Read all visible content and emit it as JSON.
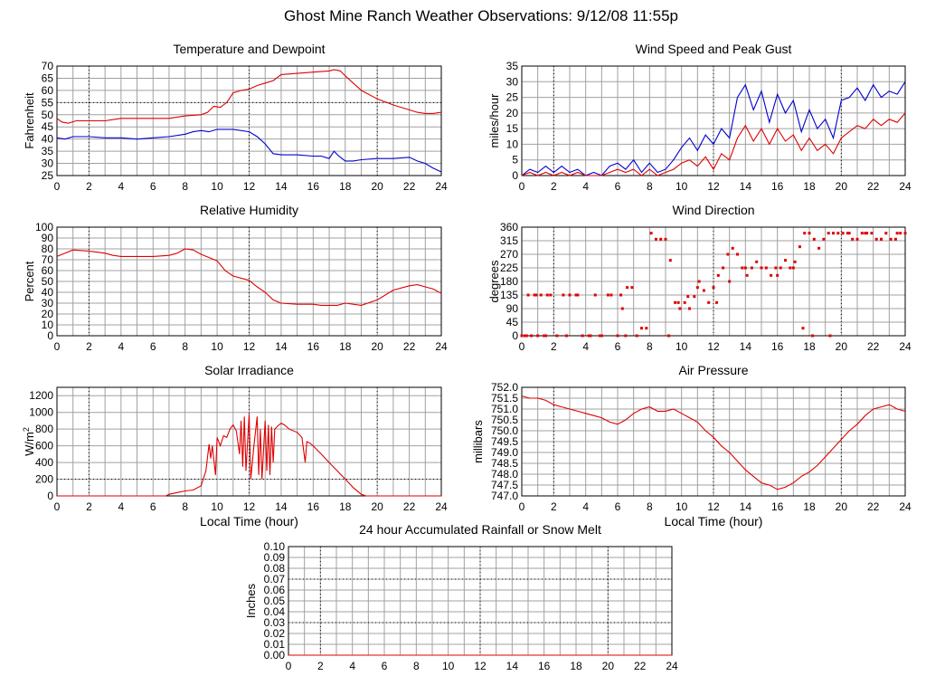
{
  "page_title": "Ghost Mine Ranch Weather Observations: 9/12/08 11:55p",
  "colors": {
    "series_red": "#e00000",
    "series_blue": "#0000d0",
    "grid": "#a0a0a0",
    "dotted": "#000000"
  },
  "chart_data": [
    {
      "id": "temp",
      "type": "line",
      "title": "Temperature and Dewpoint",
      "ylabel": "Fahrenheit",
      "xlabel": "",
      "xlim": [
        0,
        24
      ],
      "ylim": [
        25,
        70
      ],
      "xticks": [
        0,
        2,
        4,
        6,
        8,
        10,
        12,
        14,
        16,
        18,
        20,
        22,
        24
      ],
      "yticks": [
        25,
        30,
        35,
        40,
        45,
        50,
        55,
        60,
        65,
        70
      ],
      "dotted_y": [
        55
      ],
      "series": [
        {
          "color": "red",
          "x": [
            0,
            0.3,
            0.7,
            1.2,
            2,
            3,
            4,
            5,
            6,
            7,
            8,
            9,
            9.4,
            9.8,
            10.2,
            10.6,
            11,
            11.5,
            12,
            12.5,
            13,
            13.5,
            14,
            15,
            16,
            17,
            17.3,
            17.7,
            18,
            18.5,
            19,
            20,
            21,
            22,
            22.5,
            23,
            23.5,
            24
          ],
          "values": [
            48.5,
            47,
            46.5,
            47.5,
            47.5,
            47.5,
            48.5,
            48.5,
            48.5,
            48.5,
            49.5,
            50,
            51,
            53.5,
            53,
            55,
            59,
            60,
            60.5,
            62,
            63,
            64,
            66.5,
            67,
            67.5,
            68,
            68.5,
            68,
            66,
            63,
            60,
            56.5,
            54,
            52,
            51,
            50.5,
            50.5,
            51
          ]
        },
        {
          "color": "blue",
          "x": [
            0,
            0.5,
            1,
            2,
            3,
            4,
            5,
            6,
            7,
            8,
            8.5,
            9,
            9.5,
            10,
            10.5,
            11,
            12,
            12.5,
            13,
            13.5,
            14,
            15,
            16,
            16.5,
            17,
            17.3,
            17.6,
            18,
            18.5,
            19,
            20,
            21,
            22,
            22.5,
            23,
            23.5,
            24
          ],
          "values": [
            40.5,
            40,
            41,
            41,
            40.5,
            40.5,
            40,
            40.5,
            41,
            42,
            43,
            43.5,
            43,
            44,
            44,
            44,
            43,
            41,
            38,
            34,
            33.5,
            33.5,
            33,
            33,
            32,
            35,
            33,
            31,
            31,
            31.5,
            32,
            32,
            32.5,
            31,
            30,
            28,
            26.5
          ]
        }
      ]
    },
    {
      "id": "wind",
      "type": "line",
      "title": "Wind Speed and Peak Gust",
      "ylabel": "miles/hour",
      "xlabel": "",
      "xlim": [
        0,
        24
      ],
      "ylim": [
        0,
        35
      ],
      "xticks": [
        0,
        2,
        4,
        6,
        8,
        10,
        12,
        14,
        16,
        18,
        20,
        22,
        24
      ],
      "yticks": [
        0,
        5,
        10,
        15,
        20,
        25,
        30,
        35
      ],
      "dotted_y": [],
      "series": [
        {
          "color": "blue",
          "x": [
            0,
            0.5,
            1,
            1.5,
            2,
            2.5,
            3,
            3.5,
            4,
            4.5,
            5,
            5.5,
            6,
            6.5,
            7,
            7.5,
            8,
            8.5,
            9,
            9.5,
            10,
            10.5,
            11,
            11.5,
            12,
            12.5,
            13,
            13.5,
            14,
            14.5,
            15,
            15.5,
            16,
            16.5,
            17,
            17.5,
            18,
            18.5,
            19,
            19.5,
            20,
            20.5,
            21,
            21.5,
            22,
            22.5,
            23,
            23.5,
            24
          ],
          "values": [
            0,
            2,
            1,
            3,
            1,
            3,
            1,
            2,
            0,
            1,
            0,
            3,
            4,
            2,
            5,
            1,
            4,
            1,
            2,
            5,
            9,
            12,
            8,
            13,
            10,
            15,
            12,
            25,
            29,
            21,
            27,
            17,
            26,
            20,
            24,
            14,
            21,
            15,
            18,
            12,
            24,
            25,
            28,
            24,
            29,
            25,
            27,
            26,
            30
          ]
        },
        {
          "color": "red",
          "x": [
            0,
            0.5,
            1,
            1.5,
            2,
            2.5,
            3,
            3.5,
            4,
            4.5,
            5,
            5.5,
            6,
            6.5,
            7,
            7.5,
            8,
            8.5,
            9,
            9.5,
            10,
            10.5,
            11,
            11.5,
            12,
            12.5,
            13,
            13.5,
            14,
            14.5,
            15,
            15.5,
            16,
            16.5,
            17,
            17.5,
            18,
            18.5,
            19,
            19.5,
            20,
            20.5,
            21,
            21.5,
            22,
            22.5,
            23,
            23.5,
            24
          ],
          "values": [
            0,
            1,
            0,
            1,
            0,
            1,
            0,
            1,
            0,
            0,
            0,
            1,
            2,
            1,
            2,
            0,
            2,
            0,
            1,
            2,
            4,
            5,
            3,
            6,
            2,
            7,
            5,
            12,
            16,
            11,
            15,
            10,
            15,
            11,
            13,
            8,
            12,
            8,
            10,
            7,
            12,
            14,
            16,
            15,
            18,
            16,
            18,
            17,
            20
          ]
        }
      ]
    },
    {
      "id": "rh",
      "type": "line",
      "title": "Relative Humidity",
      "ylabel": "Percent",
      "xlabel": "",
      "xlim": [
        0,
        24
      ],
      "ylim": [
        0,
        100
      ],
      "xticks": [
        0,
        2,
        4,
        6,
        8,
        10,
        12,
        14,
        16,
        18,
        20,
        22,
        24
      ],
      "yticks": [
        0,
        10,
        20,
        30,
        40,
        50,
        60,
        70,
        80,
        90,
        100
      ],
      "dotted_y": [],
      "series": [
        {
          "color": "red",
          "x": [
            0,
            0.5,
            1,
            2,
            3,
            3.5,
            4,
            5,
            6,
            7,
            7.5,
            8,
            8.5,
            9,
            9.5,
            10,
            10.5,
            11,
            12,
            12.5,
            13,
            13.5,
            14,
            15,
            16,
            16.5,
            17,
            17.5,
            18,
            19,
            20,
            21,
            22,
            22.5,
            23,
            23.5,
            24
          ],
          "values": [
            73,
            76,
            79,
            78,
            76,
            74,
            73,
            73,
            73,
            74,
            76,
            80,
            79,
            75,
            72,
            69,
            60,
            55,
            51,
            45,
            40,
            33,
            30,
            29,
            29,
            28,
            28,
            28,
            30,
            28,
            33,
            42,
            46,
            47,
            45,
            43,
            39
          ]
        }
      ]
    },
    {
      "id": "winddir",
      "type": "scatter",
      "title": "Wind Direction",
      "ylabel": "degrees",
      "xlabel": "",
      "xlim": [
        0,
        24
      ],
      "ylim": [
        0,
        360
      ],
      "xticks": [
        0,
        2,
        4,
        6,
        8,
        10,
        12,
        14,
        16,
        18,
        20,
        22,
        24
      ],
      "yticks": [
        0,
        45,
        90,
        135,
        180,
        225,
        270,
        315,
        360
      ],
      "dotted_y": [],
      "series": [
        {
          "color": "red",
          "x": [
            0,
            0.2,
            0.4,
            0.6,
            0.8,
            1,
            1.2,
            1.4,
            1.6,
            1.8,
            2.2,
            2.6,
            3,
            3.4,
            3.8,
            4.2,
            4.6,
            5,
            5.4,
            6,
            6.3,
            6.6,
            6.9,
            7.2,
            7.5,
            7.8,
            8.1,
            8.4,
            8.7,
            9,
            9.3,
            9.6,
            9.9,
            10.2,
            10.5,
            10.8,
            11.1,
            11.4,
            11.7,
            12,
            12.3,
            12.6,
            12.9,
            13.2,
            13.5,
            13.8,
            14.1,
            14.4,
            14.7,
            15,
            15.3,
            15.6,
            15.9,
            16.2,
            16.5,
            16.8,
            17.1,
            17.4,
            17.7,
            18,
            18.3,
            18.6,
            18.9,
            19.2,
            19.5,
            19.8,
            20.1,
            20.4,
            20.7,
            21,
            21.3,
            21.6,
            21.9,
            22.2,
            22.5,
            22.8,
            23.1,
            23.4,
            23.7,
            24,
            0.3,
            0.9,
            1.5,
            2.8,
            3.5,
            4.3,
            4.9,
            5.6,
            6.2,
            6.5,
            9.2,
            9.8,
            10.4,
            11,
            12.2,
            13,
            14,
            15,
            16,
            17,
            17.6,
            18.2,
            19.3,
            20.5,
            21.5,
            22.5,
            23.5
          ],
          "values": [
            0,
            0,
            135,
            0,
            135,
            0,
            135,
            0,
            135,
            135,
            0,
            135,
            135,
            135,
            0,
            0,
            135,
            0,
            135,
            0,
            90,
            160,
            160,
            0,
            25,
            25,
            340,
            320,
            320,
            320,
            250,
            110,
            90,
            110,
            90,
            130,
            180,
            150,
            110,
            160,
            200,
            225,
            270,
            290,
            270,
            225,
            200,
            225,
            245,
            225,
            225,
            200,
            225,
            225,
            250,
            225,
            245,
            295,
            340,
            340,
            320,
            290,
            320,
            340,
            340,
            340,
            340,
            340,
            320,
            320,
            340,
            340,
            340,
            320,
            320,
            340,
            320,
            320,
            340,
            340,
            0,
            135,
            0,
            0,
            135,
            0,
            0,
            135,
            135,
            0,
            0,
            110,
            130,
            160,
            110,
            180,
            225,
            225,
            200,
            225,
            25,
            0,
            0,
            340,
            340,
            320,
            340
          ]
        }
      ]
    },
    {
      "id": "solar",
      "type": "line",
      "title": "Solar Irradiance",
      "ylabel": "W/m",
      "ylabel_sup": "2",
      "xlabel": "Local Time (hour)",
      "xlim": [
        0,
        24
      ],
      "ylim": [
        0,
        1300
      ],
      "xticks": [
        0,
        2,
        4,
        6,
        8,
        10,
        12,
        14,
        16,
        18,
        20,
        22,
        24
      ],
      "yticks": [
        0,
        200,
        400,
        600,
        800,
        1000,
        1200
      ],
      "dotted_y": [
        200
      ],
      "series": [
        {
          "color": "red",
          "x": [
            0,
            6.8,
            7,
            7.5,
            8,
            8.5,
            9,
            9.3,
            9.5,
            9.6,
            9.7,
            9.9,
            10,
            10.2,
            10.4,
            10.6,
            10.8,
            11,
            11.2,
            11.4,
            11.5,
            11.6,
            11.7,
            11.8,
            12,
            12.1,
            12.3,
            12.5,
            12.6,
            12.7,
            12.8,
            13,
            13.1,
            13.2,
            13.3,
            13.4,
            13.5,
            13.6,
            13.8,
            14,
            14.2,
            14.5,
            15,
            15.3,
            15.5,
            15.6,
            15.8,
            16,
            16.5,
            17,
            17.5,
            18,
            18.5,
            19,
            19.3,
            24
          ],
          "values": [
            0,
            0,
            20,
            40,
            60,
            70,
            120,
            300,
            620,
            450,
            600,
            250,
            700,
            600,
            720,
            700,
            800,
            850,
            780,
            500,
            900,
            350,
            950,
            300,
            980,
            200,
            600,
            950,
            250,
            800,
            200,
            900,
            300,
            850,
            250,
            830,
            400,
            800,
            840,
            870,
            850,
            800,
            760,
            700,
            400,
            650,
            630,
            600,
            500,
            400,
            300,
            200,
            100,
            20,
            0,
            0
          ]
        }
      ]
    },
    {
      "id": "pressure",
      "type": "line",
      "title": "Air Pressure",
      "ylabel": "millibars",
      "xlabel": "Local Time (hour)",
      "xlim": [
        0,
        24
      ],
      "ylim": [
        747.0,
        752.0
      ],
      "xticks": [
        0,
        2,
        4,
        6,
        8,
        10,
        12,
        14,
        16,
        18,
        20,
        22,
        24
      ],
      "yticks": [
        "747.0",
        "747.5",
        "748.0",
        "748.5",
        "749.0",
        "749.5",
        "750.0",
        "750.5",
        "751.0",
        "751.5",
        "752.0"
      ],
      "dotted_y": [],
      "series": [
        {
          "color": "red",
          "x": [
            0,
            0.5,
            1,
            1.5,
            2,
            2.5,
            3,
            3.5,
            4,
            4.5,
            5,
            5.5,
            6,
            6.5,
            7,
            7.5,
            8,
            8.5,
            9,
            9.5,
            10,
            10.5,
            11,
            11.5,
            12,
            12.5,
            13,
            13.5,
            14,
            14.5,
            15,
            15.5,
            16,
            16.5,
            17,
            17.5,
            18,
            18.5,
            19,
            19.5,
            20,
            20.5,
            21,
            21.5,
            22,
            22.5,
            23,
            23.5,
            24
          ],
          "values": [
            751.6,
            751.5,
            751.5,
            751.4,
            751.2,
            751.1,
            751.0,
            750.9,
            750.8,
            750.7,
            750.6,
            750.4,
            750.3,
            750.5,
            750.8,
            751.0,
            751.1,
            750.9,
            750.9,
            751.0,
            750.8,
            750.6,
            750.4,
            750.0,
            749.7,
            749.3,
            749.0,
            748.6,
            748.2,
            747.9,
            747.6,
            747.5,
            747.3,
            747.4,
            747.6,
            747.9,
            748.1,
            748.4,
            748.8,
            749.2,
            749.6,
            750.0,
            750.3,
            750.7,
            751.0,
            751.1,
            751.2,
            751.0,
            750.9
          ]
        }
      ]
    },
    {
      "id": "rain",
      "type": "line",
      "title": "24 hour Accumulated Rainfall or Snow Melt",
      "ylabel": "Inches",
      "xlabel": "",
      "xlim": [
        0,
        24
      ],
      "ylim": [
        0,
        0.1
      ],
      "xticks": [
        0,
        2,
        4,
        6,
        8,
        10,
        12,
        14,
        16,
        18,
        20,
        22,
        24
      ],
      "yticks": [
        "0.00",
        "0.01",
        "0.02",
        "0.03",
        "0.04",
        "0.05",
        "0.06",
        "0.07",
        "0.08",
        "0.09",
        "0.10"
      ],
      "dotted_y": [
        "0.03",
        "0.07"
      ],
      "series": [
        {
          "color": "red",
          "x": [
            0,
            24
          ],
          "values": [
            0,
            0
          ]
        }
      ]
    }
  ]
}
